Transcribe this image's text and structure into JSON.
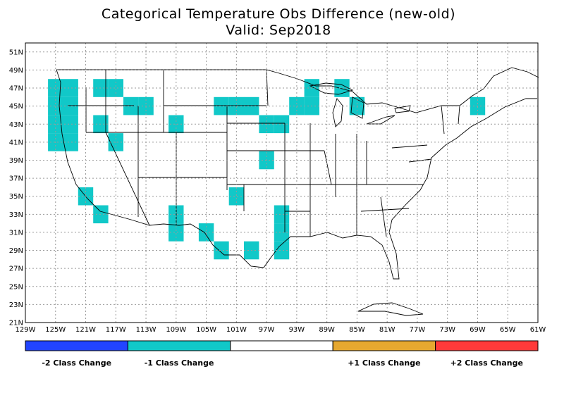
{
  "title": "Categorical Temperature Obs Difference (new-old)",
  "subtitle": "Valid: Sep2018",
  "map": {
    "lon_range": [
      -129,
      -61
    ],
    "lat_range": [
      21,
      52
    ],
    "lon_ticks": [
      "129W",
      "125W",
      "121W",
      "117W",
      "113W",
      "109W",
      "105W",
      "101W",
      "97W",
      "93W",
      "89W",
      "85W",
      "81W",
      "77W",
      "73W",
      "69W",
      "65W",
      "61W"
    ],
    "lon_tick_values": [
      -129,
      -125,
      -121,
      -117,
      -113,
      -109,
      -105,
      -101,
      -97,
      -93,
      -89,
      -85,
      -81,
      -77,
      -73,
      -69,
      -65,
      -61
    ],
    "lat_ticks": [
      "21N",
      "23N",
      "25N",
      "27N",
      "29N",
      "31N",
      "33N",
      "35N",
      "37N",
      "39N",
      "41N",
      "43N",
      "45N",
      "47N",
      "49N",
      "51N"
    ],
    "lat_tick_values": [
      21,
      23,
      25,
      27,
      29,
      31,
      33,
      35,
      37,
      39,
      41,
      43,
      45,
      47,
      49,
      51
    ],
    "cell_size_deg": 2,
    "cell_color": "#11c8c8",
    "cells": [
      [
        -125,
        47
      ],
      [
        -125,
        45
      ],
      [
        -125,
        43
      ],
      [
        -125,
        41
      ],
      [
        -123,
        47
      ],
      [
        -123,
        45
      ],
      [
        -123,
        43
      ],
      [
        -123,
        41
      ],
      [
        -119,
        47
      ],
      [
        -117,
        47
      ],
      [
        -119,
        43
      ],
      [
        -117,
        41
      ],
      [
        -115,
        45
      ],
      [
        -113,
        45
      ],
      [
        -109,
        43
      ],
      [
        -103,
        45
      ],
      [
        -101,
        45
      ],
      [
        -99,
        45
      ],
      [
        -97,
        43
      ],
      [
        -95,
        43
      ],
      [
        -93,
        45
      ],
      [
        -91,
        45
      ],
      [
        -91,
        47
      ],
      [
        -87,
        47
      ],
      [
        -85,
        45
      ],
      [
        -69,
        45
      ],
      [
        -97,
        39
      ],
      [
        -121,
        35
      ],
      [
        -119,
        33
      ],
      [
        -109,
        33
      ],
      [
        -109,
        31
      ],
      [
        -105,
        31
      ],
      [
        -103,
        29
      ],
      [
        -101,
        35
      ],
      [
        -99,
        29
      ],
      [
        -95,
        33
      ],
      [
        -95,
        31
      ],
      [
        -95,
        29
      ]
    ]
  },
  "legend": {
    "segments": [
      {
        "color": "#2244ff",
        "label": "-2 Class Change"
      },
      {
        "color": "#11c8c8",
        "label": "-1 Class Change"
      },
      {
        "color": "#ffffff",
        "label": ""
      },
      {
        "color": "#e6a830",
        "label": "+1 Class Change"
      },
      {
        "color": "#ff3a3a",
        "label": "+2 Class Change"
      }
    ]
  }
}
